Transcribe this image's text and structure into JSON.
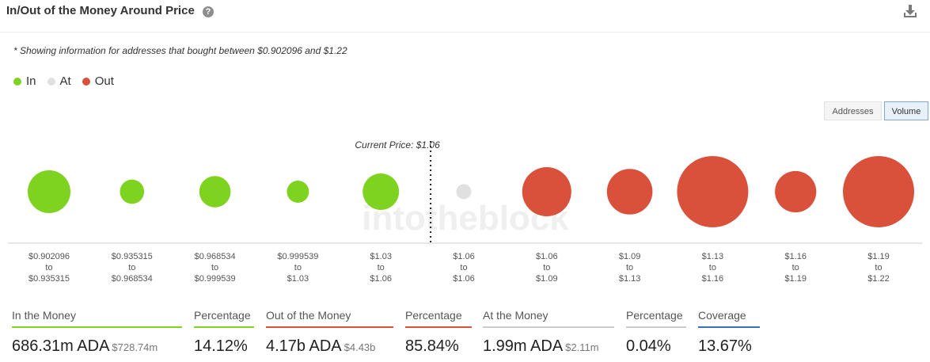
{
  "header": {
    "title": "In/Out of the Money Around Price",
    "help_icon": "question-circle-icon",
    "download_icon": "download-icon"
  },
  "note": "* Showing information for addresses that bought between $0.902096 and $1.22",
  "legend": [
    {
      "label": "In",
      "color": "#7ed321"
    },
    {
      "label": "At",
      "color": "#e0e0e0"
    },
    {
      "label": "Out",
      "color": "#d9513b"
    }
  ],
  "toggles": {
    "addresses": "Addresses",
    "volume": "Volume",
    "selected": "Volume"
  },
  "watermark": "intotheblock",
  "chart_data": {
    "type": "scatter",
    "encoding": "bubble size = volume; bubble color = in/at/out of the money",
    "current_price_label": "Current Price: $1.06",
    "current_price_after_bucket": 5,
    "buckets": [
      {
        "from": "$0.902096",
        "to": "$0.935315",
        "status": "in",
        "relative_size": 0.6
      },
      {
        "from": "$0.935315",
        "to": "$0.968534",
        "status": "in",
        "relative_size": 0.34
      },
      {
        "from": "$0.968534",
        "to": "$0.999539",
        "status": "in",
        "relative_size": 0.44
      },
      {
        "from": "$0.999539",
        "to": "$1.03",
        "status": "in",
        "relative_size": 0.31
      },
      {
        "from": "$1.03",
        "to": "$1.06",
        "status": "in",
        "relative_size": 0.51
      },
      {
        "from": "$1.06",
        "to": "$1.06",
        "status": "at",
        "relative_size": 0.21
      },
      {
        "from": "$1.06",
        "to": "$1.09",
        "status": "out",
        "relative_size": 0.69
      },
      {
        "from": "$1.09",
        "to": "$1.13",
        "status": "out",
        "relative_size": 0.64
      },
      {
        "from": "$1.13",
        "to": "$1.16",
        "status": "out",
        "relative_size": 1.0
      },
      {
        "from": "$1.16",
        "to": "$1.19",
        "status": "out",
        "relative_size": 0.58
      },
      {
        "from": "$1.19",
        "to": "$1.22",
        "status": "out",
        "relative_size": 1.0
      }
    ],
    "range_separator": "to"
  },
  "stats": [
    {
      "label": "In the Money",
      "value": "686.31m ADA",
      "sub": "$728.74m",
      "color": "#7ed321"
    },
    {
      "label": "Percentage",
      "value": "14.12%",
      "sub": "",
      "color": "#7ed321"
    },
    {
      "label": "Out of the Money",
      "value": "4.17b ADA",
      "sub": "$4.43b",
      "color": "#d9513b"
    },
    {
      "label": "Percentage",
      "value": "85.84%",
      "sub": "",
      "color": "#d9513b"
    },
    {
      "label": "At the Money",
      "value": "1.99m ADA",
      "sub": "$2.11m",
      "color": "#cccccc"
    },
    {
      "label": "Percentage",
      "value": "0.04%",
      "sub": "",
      "color": "#cccccc"
    },
    {
      "label": "Coverage",
      "value": "13.67%",
      "sub": "",
      "color": "#3a6fc4"
    }
  ]
}
